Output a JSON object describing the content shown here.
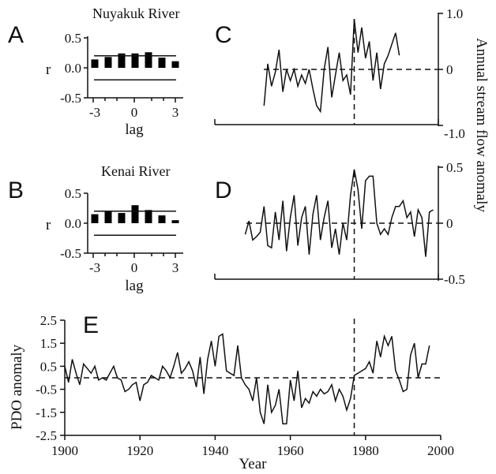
{
  "chart_data": [
    {
      "panel": "A",
      "type": "bar",
      "title": "Nuyakuk River",
      "xlabel": "lag",
      "ylabel": "r",
      "categories": [
        -3,
        -2,
        -1,
        0,
        1,
        2,
        3
      ],
      "values": [
        0.14,
        0.18,
        0.24,
        0.24,
        0.26,
        0.17,
        0.11
      ],
      "significance_levels": [
        0.2,
        -0.2
      ],
      "ylim": [
        -0.5,
        0.5
      ],
      "yticks": [
        "0.5",
        "0.0",
        "-0.5"
      ],
      "xticks": [
        "-3",
        "0",
        "3"
      ]
    },
    {
      "panel": "B",
      "type": "bar",
      "title": "Kenai River",
      "xlabel": "lag",
      "ylabel": "r",
      "categories": [
        -3,
        -2,
        -1,
        0,
        1,
        2,
        3
      ],
      "values": [
        0.15,
        0.19,
        0.17,
        0.3,
        0.22,
        0.13,
        0.05
      ],
      "significance_levels": [
        0.2,
        -0.2
      ],
      "ylim": [
        -0.5,
        0.5
      ],
      "yticks": [
        "0.5",
        "0.0",
        "-0.5"
      ],
      "xticks": [
        "-3",
        "0",
        "3"
      ]
    },
    {
      "panel": "C",
      "type": "line",
      "ylabel": "Annual stream flow anomaly",
      "ylim": [
        -1.0,
        1.0
      ],
      "yticks": [
        "1.0",
        "0",
        "-1.0"
      ],
      "xlim": [
        1900,
        2000
      ],
      "regime_shift_year": 1977,
      "x": [
        1953,
        1954,
        1955,
        1956,
        1957,
        1958,
        1959,
        1960,
        1961,
        1962,
        1963,
        1964,
        1965,
        1966,
        1967,
        1968,
        1969,
        1970,
        1971,
        1972,
        1973,
        1974,
        1975,
        1976,
        1977,
        1978,
        1979,
        1980,
        1981,
        1982,
        1983,
        1984,
        1985,
        1986,
        1987,
        1988,
        1989
      ],
      "values": [
        -0.65,
        0.1,
        -0.3,
        -0.05,
        0.35,
        -0.4,
        0.0,
        -0.2,
        0.0,
        -0.3,
        -0.1,
        -0.25,
        0.0,
        -0.35,
        -0.65,
        -0.75,
        0.0,
        0.4,
        -0.5,
        -0.1,
        0.3,
        -0.2,
        -0.1,
        -0.45,
        0.9,
        0.3,
        0.75,
        0.2,
        0.5,
        -0.2,
        0.3,
        -0.35,
        0.1,
        0.25,
        0.45,
        0.65,
        0.25
      ]
    },
    {
      "panel": "D",
      "type": "line",
      "ylabel": "Annual stream flow anomaly",
      "ylim": [
        -0.5,
        0.5
      ],
      "yticks": [
        "0.5",
        "0",
        "-0.5"
      ],
      "xlim": [
        1900,
        2000
      ],
      "regime_shift_year": 1977,
      "x": [
        1948,
        1949,
        1950,
        1951,
        1952,
        1953,
        1954,
        1955,
        1956,
        1957,
        1958,
        1959,
        1960,
        1961,
        1962,
        1963,
        1964,
        1965,
        1966,
        1967,
        1968,
        1969,
        1970,
        1971,
        1972,
        1973,
        1974,
        1975,
        1976,
        1977,
        1978,
        1979,
        1980,
        1981,
        1982,
        1983,
        1984,
        1985,
        1986,
        1987,
        1988,
        1989,
        1990,
        1991,
        1992,
        1993,
        1994,
        1995,
        1996,
        1997,
        1998
      ],
      "values": [
        -0.1,
        0.02,
        -0.15,
        -0.12,
        -0.08,
        0.15,
        -0.2,
        -0.22,
        0.1,
        -0.15,
        0.2,
        -0.25,
        0.05,
        0.25,
        -0.2,
        0.05,
        0.15,
        -0.28,
        0.08,
        0.25,
        -0.15,
        0.05,
        0.2,
        -0.22,
        -0.05,
        -0.28,
        0.0,
        -0.15,
        0.25,
        0.48,
        0.3,
        -0.05,
        0.38,
        0.42,
        0.42,
        0.0,
        -0.1,
        -0.05,
        -0.1,
        0.05,
        0.15,
        0.15,
        0.2,
        0.05,
        0.1,
        -0.12,
        0.12,
        0.05,
        -0.3,
        0.1,
        0.12
      ]
    },
    {
      "panel": "E",
      "type": "line",
      "xlabel": "Year",
      "ylabel": "PDO anomaly",
      "xlim": [
        1900,
        2000
      ],
      "ylim": [
        -2.5,
        2.5
      ],
      "xticks": [
        "1900",
        "1920",
        "1940",
        "1960",
        "1980",
        "2000"
      ],
      "yticks": [
        "2.5",
        "1.5",
        "0.5",
        "-0.5",
        "-1.5",
        "-2.5"
      ],
      "regime_shift_year": 1977,
      "x": [
        1900,
        1901,
        1902,
        1903,
        1904,
        1905,
        1906,
        1907,
        1908,
        1909,
        1910,
        1911,
        1912,
        1913,
        1914,
        1915,
        1916,
        1917,
        1918,
        1919,
        1920,
        1921,
        1922,
        1923,
        1924,
        1925,
        1926,
        1927,
        1928,
        1929,
        1930,
        1931,
        1932,
        1933,
        1934,
        1935,
        1936,
        1937,
        1938,
        1939,
        1940,
        1941,
        1942,
        1943,
        1944,
        1945,
        1946,
        1947,
        1948,
        1949,
        1950,
        1951,
        1952,
        1953,
        1954,
        1955,
        1956,
        1957,
        1958,
        1959,
        1960,
        1961,
        1962,
        1963,
        1964,
        1965,
        1966,
        1967,
        1968,
        1969,
        1970,
        1971,
        1972,
        1973,
        1974,
        1975,
        1976,
        1977,
        1978,
        1979,
        1980,
        1981,
        1982,
        1983,
        1984,
        1985,
        1986,
        1987,
        1988,
        1989,
        1990,
        1991,
        1992,
        1993,
        1994,
        1995,
        1996,
        1997
      ],
      "values": [
        0.5,
        -0.2,
        0.8,
        0.2,
        -0.3,
        0.6,
        0.4,
        0.2,
        0.5,
        -0.1,
        0.0,
        -0.1,
        0.2,
        0.5,
        0.0,
        -0.1,
        -0.6,
        -0.5,
        -0.3,
        -0.2,
        -1.0,
        -0.3,
        -0.2,
        0.1,
        0.0,
        -0.1,
        0.5,
        0.3,
        0.0,
        0.5,
        1.1,
        0.2,
        0.4,
        0.7,
        0.3,
        -0.4,
        0.9,
        -0.7,
        0.8,
        1.6,
        0.5,
        1.8,
        1.9,
        0.3,
        0.2,
        0.1,
        1.4,
        0.0,
        -0.3,
        -0.5,
        -1.0,
        0.0,
        -1.5,
        -2.0,
        -0.3,
        -1.5,
        -1.2,
        -0.5,
        -2.0,
        -2.0,
        -0.1,
        -1.0,
        0.3,
        -1.3,
        -0.9,
        -1.1,
        -0.6,
        -0.8,
        -0.5,
        -0.7,
        -0.6,
        -0.3,
        -1.0,
        -0.5,
        -0.8,
        -1.4,
        -0.9,
        0.1,
        0.2,
        0.3,
        0.4,
        0.7,
        0.2,
        1.6,
        0.9,
        1.8,
        1.4,
        1.8,
        0.3,
        -0.1,
        -0.6,
        -0.5,
        1.0,
        1.5,
        0.0,
        0.6,
        0.6,
        1.4
      ]
    }
  ]
}
